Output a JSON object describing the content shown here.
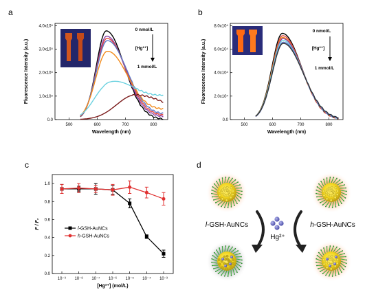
{
  "panels": {
    "a": "a",
    "b": "b",
    "c": "c",
    "d": "d"
  },
  "chart_data": [
    {
      "id": "a",
      "type": "line",
      "xlabel": "Wavelength (nm)",
      "ylabel": "Fluorescence Intensity (a.u.)",
      "xlim": [
        450,
        850
      ],
      "ylim": [
        0,
        4.1
      ],
      "x_ticks": [
        "500",
        "600",
        "700",
        "800"
      ],
      "y_ticks": [
        "0.0",
        "1.0x10⁵",
        "2.0x10⁵",
        "3.0x10⁵",
        "4.0x10⁵"
      ],
      "annotations": {
        "top": "0 nmol/L",
        "middle": "[Hg²⁺]",
        "bottom": "1 mmol/L"
      },
      "series": [
        {
          "color": "#000000",
          "peak": 3.78,
          "center": 632,
          "sigma": 64,
          "tail": 0
        },
        {
          "color": "#8b3fa8",
          "peak": 3.55,
          "center": 633,
          "sigma": 66,
          "tail": 0.1
        },
        {
          "color": "#e3483f",
          "peak": 3.45,
          "center": 634,
          "sigma": 68,
          "tail": 0.15
        },
        {
          "color": "#5a76c8",
          "peak": 3.35,
          "center": 635,
          "sigma": 70,
          "tail": 0.2
        },
        {
          "color": "#f28a1a",
          "peak": 2.88,
          "center": 634,
          "sigma": 72,
          "tail": 0.4
        },
        {
          "color": "#6cd2e0",
          "peak": 1.5,
          "center": 640,
          "sigma": 90,
          "tail": 0.9
        },
        {
          "color": "#7a1a1a",
          "peak": 1.05,
          "center": 735,
          "sigma": 120,
          "tail": 0
        }
      ]
    },
    {
      "id": "b",
      "type": "line",
      "xlabel": "Wavelength (nm)",
      "ylabel": "Fluorescence Intensity (a.u.)",
      "xlim": [
        450,
        850
      ],
      "ylim": [
        0,
        8.2
      ],
      "x_ticks": [
        "500",
        "600",
        "700",
        "800"
      ],
      "y_ticks": [
        "0.0",
        "2.0x10⁴",
        "4.0x10⁴",
        "6.0x10⁴",
        "8.0x10⁴"
      ],
      "annotations": {
        "top": "0 nmol/L",
        "middle": "[Hg²⁺]",
        "bottom": "1 mmol/L"
      },
      "series": [
        {
          "color": "#000000",
          "peak": 7.35,
          "center": 635,
          "sigma": 68
        },
        {
          "color": "#e3483f",
          "peak": 7.15,
          "center": 636,
          "sigma": 68
        },
        {
          "color": "#f28a1a",
          "peak": 7.0,
          "center": 636,
          "sigma": 69
        },
        {
          "color": "#8b3fa8",
          "peak": 6.9,
          "center": 637,
          "sigma": 69
        },
        {
          "color": "#6cd2e0",
          "peak": 6.75,
          "center": 637,
          "sigma": 70
        },
        {
          "color": "#5a76c8",
          "peak": 6.6,
          "center": 638,
          "sigma": 70
        },
        {
          "color": "#333333",
          "peak": 6.5,
          "center": 638,
          "sigma": 71
        }
      ]
    },
    {
      "id": "c",
      "type": "line",
      "xlabel": "[Hg²⁺] (mol/L)",
      "ylabel": "F / F₀",
      "ylim": [
        0,
        1.1
      ],
      "categories": [
        "10⁻⁹",
        "10⁻⁸",
        "10⁻⁷",
        "10⁻⁶",
        "10⁻⁵",
        "10⁻⁴",
        "10⁻³"
      ],
      "y_ticks": [
        "0.0",
        "0.2",
        "0.4",
        "0.6",
        "0.8",
        "1.0"
      ],
      "series": [
        {
          "name": "l-GSH-AuNCs",
          "name_italic": "l",
          "name_rest": "-GSH-AuNCs",
          "color": "#000000",
          "marker": "square",
          "values": [
            0.94,
            0.94,
            0.94,
            0.93,
            0.78,
            0.41,
            0.22
          ],
          "errors": [
            0.05,
            0.03,
            0.06,
            0.05,
            0.05,
            0.02,
            0.04
          ]
        },
        {
          "name": "h-GSH-AuNCs",
          "name_italic": "h",
          "name_rest": "-GSH-AuNCs",
          "color": "#e03030",
          "marker": "circle",
          "values": [
            0.94,
            0.95,
            0.94,
            0.93,
            0.96,
            0.9,
            0.83
          ],
          "errors": [
            0.05,
            0.05,
            0.04,
            0.06,
            0.07,
            0.06,
            0.07
          ]
        }
      ]
    }
  ],
  "diagram": {
    "left_label_italic": "l",
    "left_label_rest": "-GSH-AuNCs",
    "right_label_italic": "h",
    "right_label_rest": "-GSH-AuNCs",
    "ion_label": "Hg²⁺"
  }
}
